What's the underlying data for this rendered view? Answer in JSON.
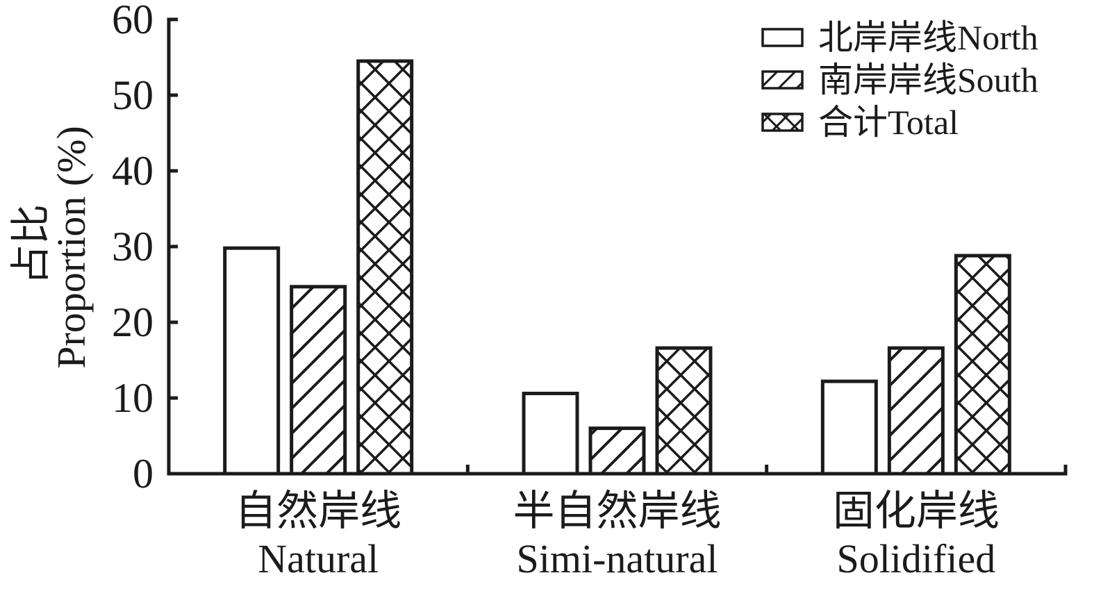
{
  "figure": {
    "background": "#ffffff",
    "ink_color": "#1b1b1b"
  },
  "chart_data": {
    "type": "bar",
    "title": "",
    "categories": [
      {
        "zh": "自然岸线",
        "en": "Natural"
      },
      {
        "zh": "半自然岸线",
        "en": "Simi-natural"
      },
      {
        "zh": "固化岸线",
        "en": "Solidified"
      }
    ],
    "series": [
      {
        "name": "北岸岸线North",
        "pattern": "plain",
        "values": [
          29.8,
          10.6,
          12.2
        ]
      },
      {
        "name": "南岸岸线South",
        "pattern": "diagonal",
        "values": [
          24.7,
          6.0,
          16.6
        ]
      },
      {
        "name": "合计Total",
        "pattern": "crosshatch",
        "values": [
          54.5,
          16.6,
          28.8
        ]
      }
    ],
    "ylabel_zh": "占比",
    "ylabel_en": "Proportion (%)",
    "xlabel": "",
    "ylim": [
      0,
      60
    ],
    "yticks": [
      0,
      10,
      20,
      30,
      40,
      50,
      60
    ],
    "grid": false,
    "legend_position": "top-right",
    "bar_fill": "#ffffff",
    "bar_edge": "#1b1b1b"
  }
}
